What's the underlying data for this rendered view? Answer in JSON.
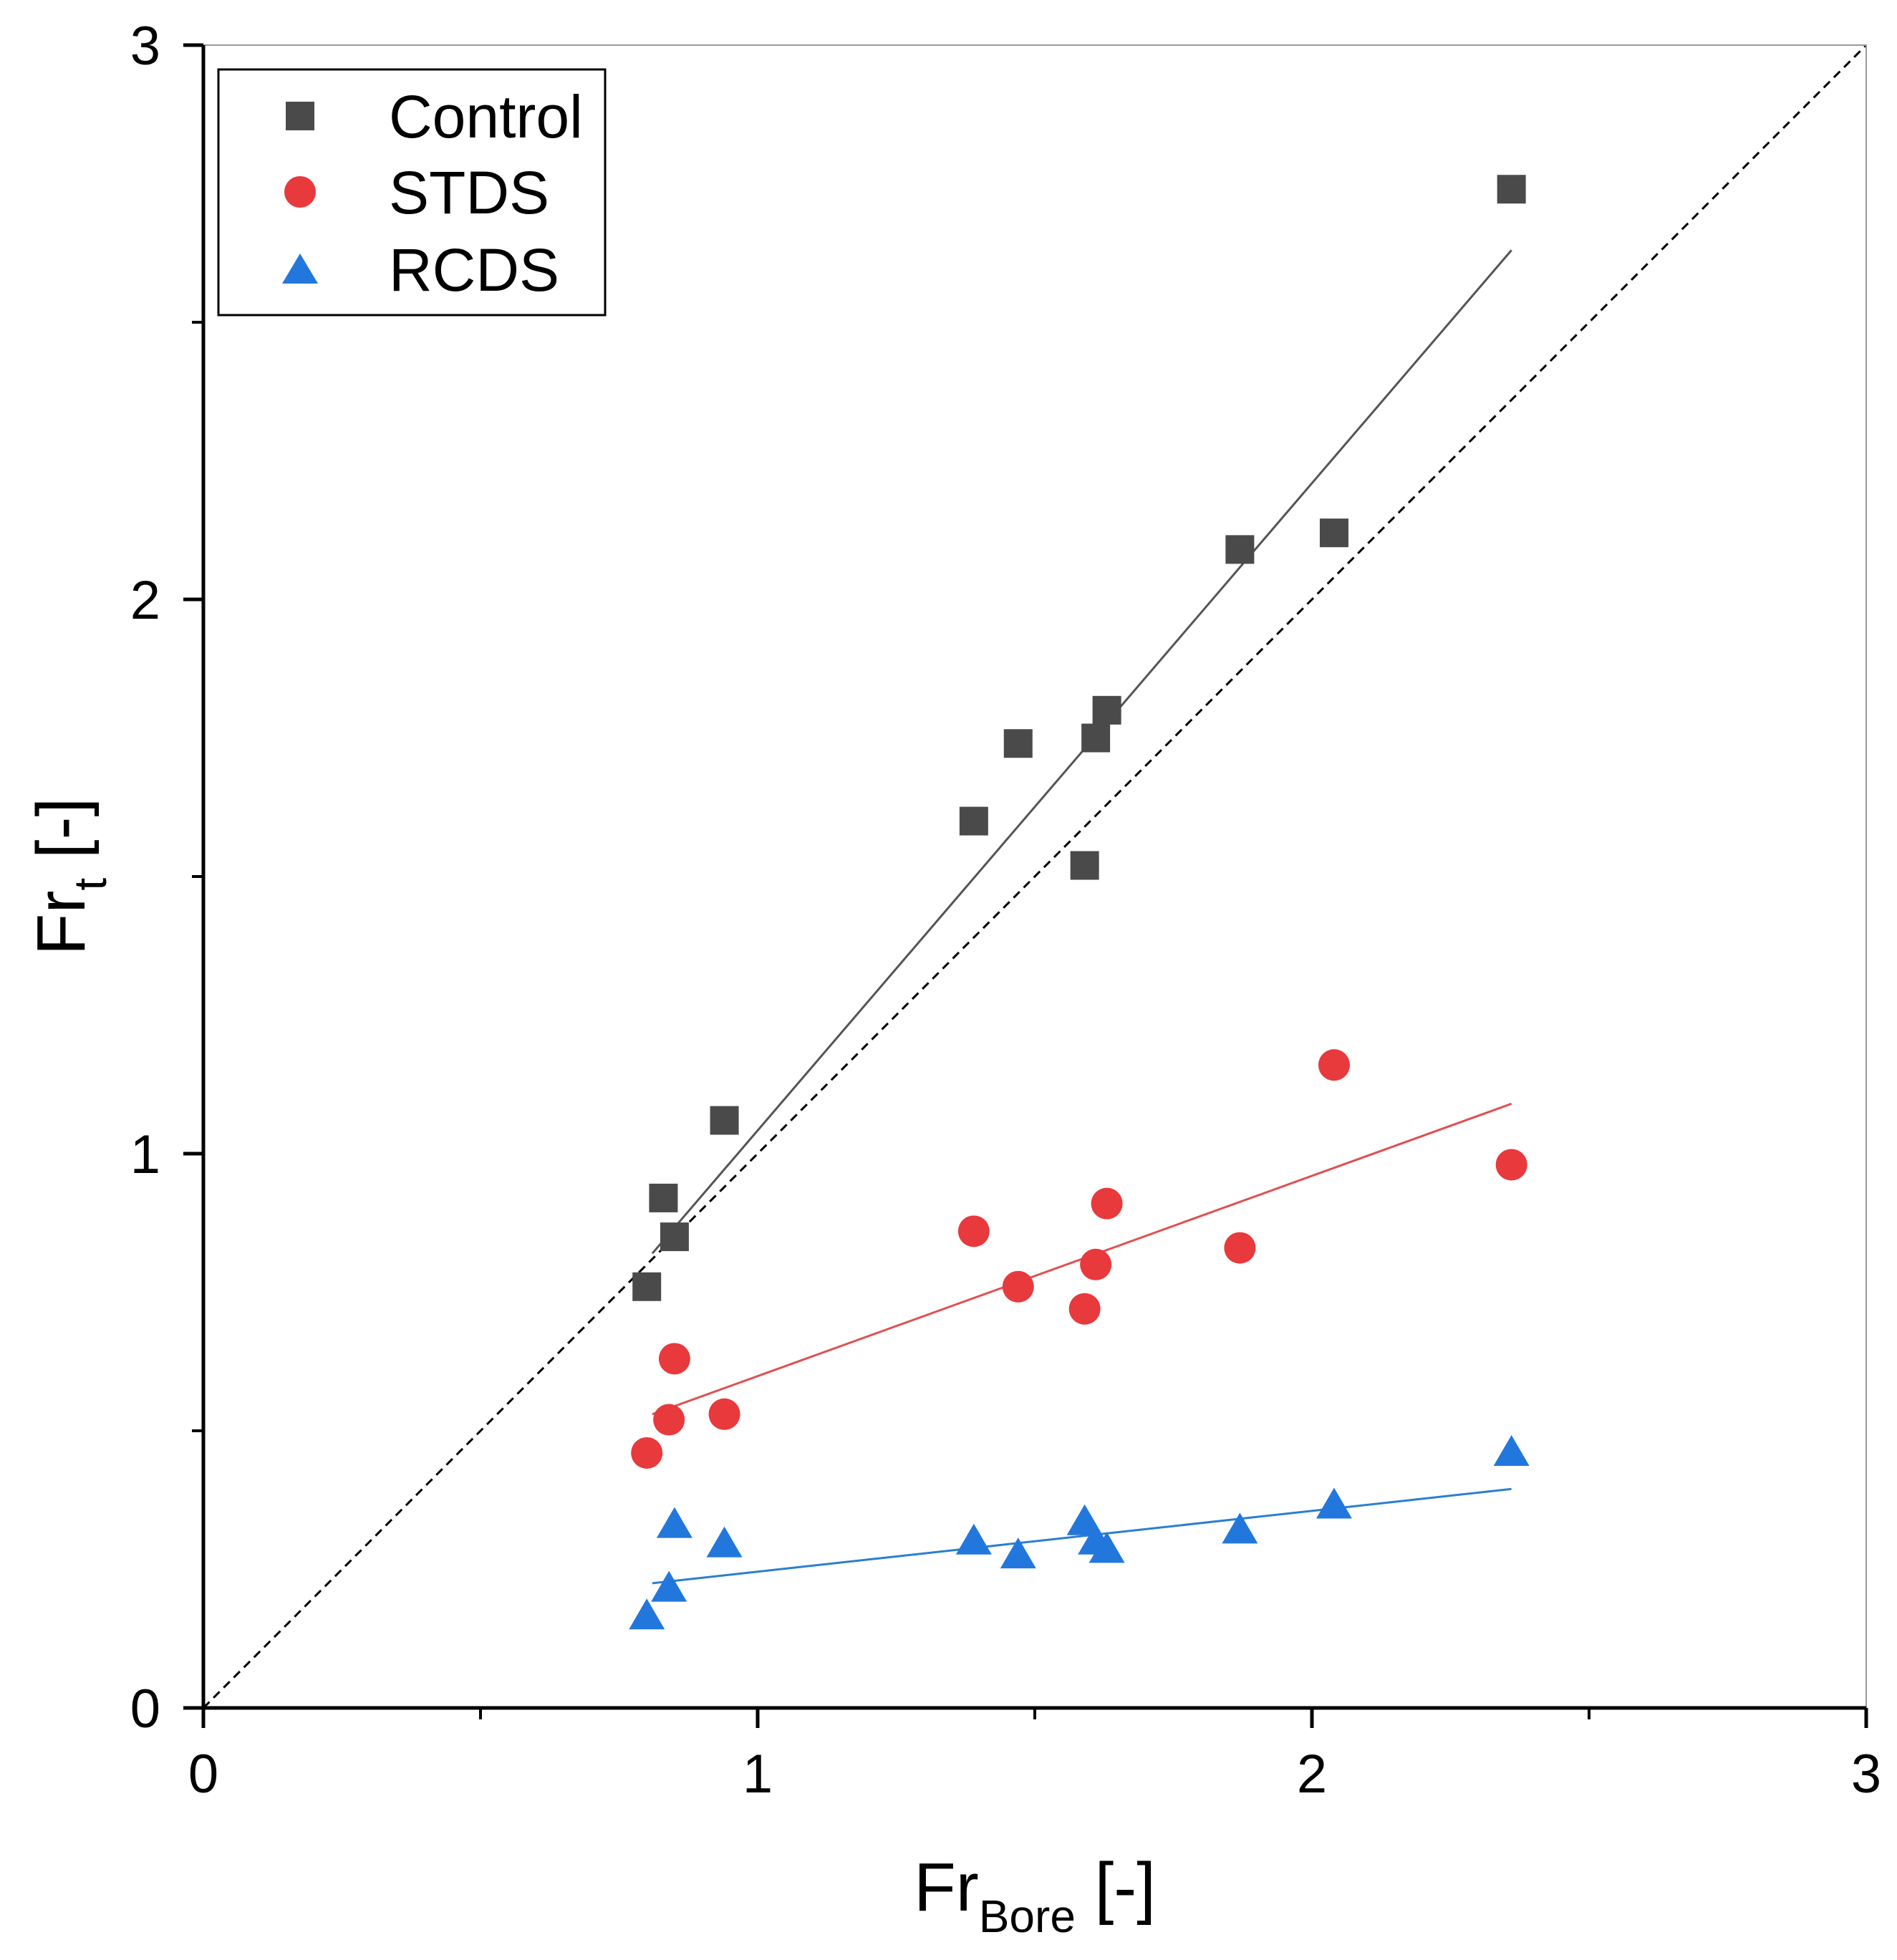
{
  "chart_data": {
    "type": "scatter",
    "title": "",
    "xlabel": {
      "main": "Fr",
      "sub": "Bore",
      "suffix": " [-]"
    },
    "ylabel": {
      "main": "Fr",
      "sub": "t",
      "suffix": " [-]"
    },
    "xlim": [
      0,
      3
    ],
    "ylim": [
      0,
      3
    ],
    "xticks": [
      {
        "value": 0,
        "label": "0"
      },
      {
        "value": 1,
        "label": "1"
      },
      {
        "value": 2,
        "label": "2"
      },
      {
        "value": 3,
        "label": "3"
      }
    ],
    "yticks": [
      {
        "value": 0,
        "label": "0"
      },
      {
        "value": 1,
        "label": "1"
      },
      {
        "value": 2,
        "label": "2"
      },
      {
        "value": 3,
        "label": "3"
      }
    ],
    "minor_ticks": [
      0.5,
      1.5,
      2.5
    ],
    "grid": false,
    "legend_position": "top-left",
    "reference_line": {
      "type": "dashed",
      "from": [
        0,
        0
      ],
      "to": [
        3,
        3
      ],
      "color": "#000000"
    },
    "series": [
      {
        "name": "Control",
        "marker": "square",
        "color": "#4a4a4a",
        "fit_color": "#555555",
        "points": [
          {
            "x": 0.8,
            "y": 0.76
          },
          {
            "x": 0.83,
            "y": 0.92
          },
          {
            "x": 0.85,
            "y": 0.85
          },
          {
            "x": 0.94,
            "y": 1.06
          },
          {
            "x": 1.39,
            "y": 1.6
          },
          {
            "x": 1.47,
            "y": 1.74
          },
          {
            "x": 1.59,
            "y": 1.52
          },
          {
            "x": 1.61,
            "y": 1.75
          },
          {
            "x": 1.63,
            "y": 1.8
          },
          {
            "x": 1.87,
            "y": 2.09
          },
          {
            "x": 2.04,
            "y": 2.12
          },
          {
            "x": 2.36,
            "y": 2.74
          }
        ],
        "fit": {
          "x": [
            0.81,
            2.36
          ],
          "y": [
            0.82,
            2.63
          ]
        }
      },
      {
        "name": "STDS",
        "marker": "circle",
        "color": "#e8393d",
        "fit_color": "#e05050",
        "points": [
          {
            "x": 0.8,
            "y": 0.46
          },
          {
            "x": 0.84,
            "y": 0.52
          },
          {
            "x": 0.85,
            "y": 0.63
          },
          {
            "x": 0.94,
            "y": 0.53
          },
          {
            "x": 1.39,
            "y": 0.86
          },
          {
            "x": 1.47,
            "y": 0.76
          },
          {
            "x": 1.59,
            "y": 0.72
          },
          {
            "x": 1.61,
            "y": 0.8
          },
          {
            "x": 1.63,
            "y": 0.91
          },
          {
            "x": 1.87,
            "y": 0.83
          },
          {
            "x": 2.04,
            "y": 1.16
          },
          {
            "x": 2.36,
            "y": 0.98
          }
        ],
        "fit": {
          "x": [
            0.81,
            2.36
          ],
          "y": [
            0.53,
            1.09
          ]
        }
      },
      {
        "name": "RCDS",
        "marker": "triangle",
        "color": "#2277dd",
        "fit_color": "#2a7fd0",
        "points": [
          {
            "x": 0.8,
            "y": 0.165
          },
          {
            "x": 0.84,
            "y": 0.215
          },
          {
            "x": 0.85,
            "y": 0.33
          },
          {
            "x": 0.94,
            "y": 0.295
          },
          {
            "x": 1.39,
            "y": 0.3
          },
          {
            "x": 1.47,
            "y": 0.275
          },
          {
            "x": 1.59,
            "y": 0.335
          },
          {
            "x": 1.61,
            "y": 0.3
          },
          {
            "x": 1.63,
            "y": 0.285
          },
          {
            "x": 1.87,
            "y": 0.32
          },
          {
            "x": 2.04,
            "y": 0.365
          },
          {
            "x": 2.36,
            "y": 0.46
          }
        ],
        "fit": {
          "x": [
            0.81,
            2.36
          ],
          "y": [
            0.225,
            0.395
          ]
        }
      }
    ]
  }
}
